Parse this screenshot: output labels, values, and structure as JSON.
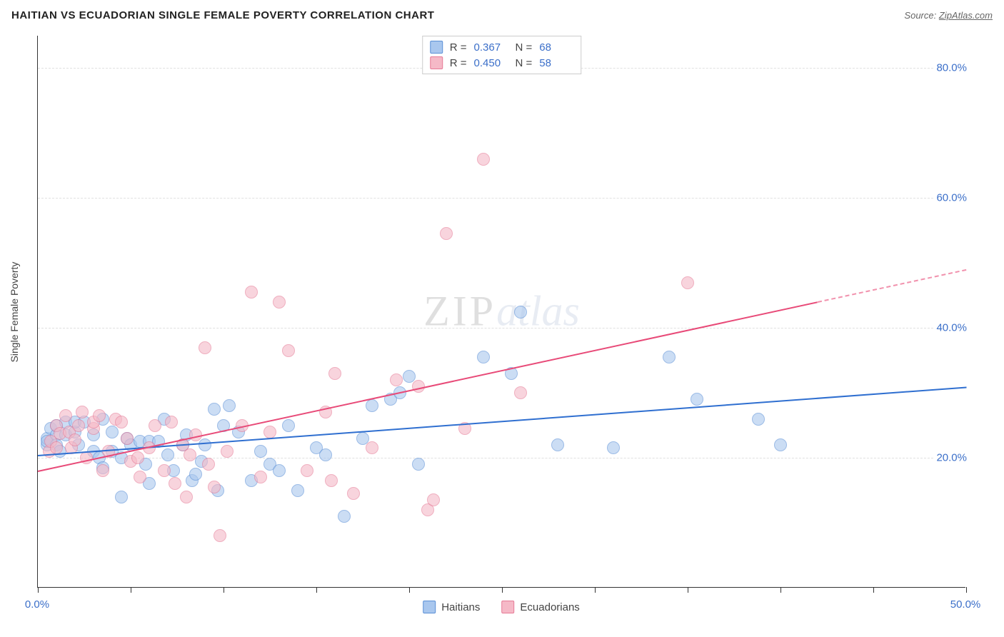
{
  "title": "HAITIAN VS ECUADORIAN SINGLE FEMALE POVERTY CORRELATION CHART",
  "source_label": "Source:",
  "source_name": "ZipAtlas.com",
  "y_axis_label": "Single Female Poverty",
  "watermark_a": "ZIP",
  "watermark_b": "atlas",
  "chart": {
    "type": "scatter",
    "xlim": [
      0,
      50
    ],
    "ylim": [
      0,
      85
    ],
    "x_ticks": [
      0,
      5,
      10,
      15,
      20,
      25,
      30,
      35,
      40,
      45,
      50
    ],
    "x_tick_labels": {
      "0": "0.0%",
      "50": "50.0%"
    },
    "y_ticks": [
      20,
      40,
      60,
      80
    ],
    "y_tick_labels": {
      "20": "20.0%",
      "40": "40.0%",
      "60": "60.0%",
      "80": "80.0%"
    },
    "background_color": "#ffffff",
    "grid_color": "#e0e0e0",
    "axis_color": "#333333",
    "tick_label_color": "#3b6fc9",
    "marker_radius": 9,
    "marker_opacity": 0.6,
    "trend_width": 2.5
  },
  "series": [
    {
      "key": "haitians",
      "label": "Haitians",
      "fill": "#a9c7ee",
      "stroke": "#5a8fd6",
      "line_color": "#2f6fd0",
      "stats": {
        "R_label": "R =",
        "R": "0.367",
        "N_label": "N =",
        "N": "68"
      },
      "trend": {
        "x1": 0,
        "y1": 20.5,
        "x2": 50,
        "y2": 31.0,
        "dash_from_x": null
      },
      "points": [
        [
          0.5,
          22
        ],
        [
          0.5,
          23
        ],
        [
          0.5,
          22.5
        ],
        [
          0.7,
          24.5
        ],
        [
          1,
          23.5
        ],
        [
          1,
          22
        ],
        [
          1,
          25
        ],
        [
          1.2,
          21
        ],
        [
          1.5,
          25.5
        ],
        [
          1.5,
          23.5
        ],
        [
          2,
          24
        ],
        [
          2,
          25.5
        ],
        [
          2.2,
          22
        ],
        [
          2.5,
          25.5
        ],
        [
          3,
          23.5
        ],
        [
          3,
          21
        ],
        [
          3.3,
          20
        ],
        [
          3.5,
          26
        ],
        [
          3.5,
          18.5
        ],
        [
          4,
          24
        ],
        [
          4,
          21
        ],
        [
          4.5,
          20
        ],
        [
          4.5,
          14
        ],
        [
          4.8,
          23
        ],
        [
          5,
          22
        ],
        [
          5.5,
          22.5
        ],
        [
          5.8,
          19
        ],
        [
          6,
          22.5
        ],
        [
          6,
          16
        ],
        [
          6.5,
          22.5
        ],
        [
          6.8,
          26
        ],
        [
          7,
          20.5
        ],
        [
          7.3,
          18
        ],
        [
          7.8,
          22
        ],
        [
          8,
          23.5
        ],
        [
          8.3,
          16.5
        ],
        [
          8.5,
          17.5
        ],
        [
          8.8,
          19.5
        ],
        [
          9,
          22
        ],
        [
          9.5,
          27.5
        ],
        [
          9.7,
          15
        ],
        [
          10,
          25
        ],
        [
          10.3,
          28
        ],
        [
          10.8,
          24
        ],
        [
          11.5,
          16.5
        ],
        [
          12,
          21
        ],
        [
          12.5,
          19
        ],
        [
          13,
          18
        ],
        [
          13.5,
          25
        ],
        [
          14,
          15
        ],
        [
          15,
          21.5
        ],
        [
          15.5,
          20.5
        ],
        [
          16.5,
          11
        ],
        [
          17.5,
          23
        ],
        [
          18,
          28
        ],
        [
          19,
          29
        ],
        [
          19.5,
          30
        ],
        [
          20,
          32.5
        ],
        [
          20.5,
          19
        ],
        [
          24,
          35.5
        ],
        [
          25.5,
          33
        ],
        [
          26,
          42.5
        ],
        [
          28,
          22
        ],
        [
          31,
          21.5
        ],
        [
          34,
          35.5
        ],
        [
          35.5,
          29
        ],
        [
          38.8,
          26
        ],
        [
          40,
          22
        ]
      ]
    },
    {
      "key": "ecuadorians",
      "label": "Ecuadorians",
      "fill": "#f5b9c7",
      "stroke": "#e67a96",
      "line_color": "#e84a78",
      "stats": {
        "R_label": "R =",
        "R": "0.450",
        "N_label": "N =",
        "N": "58"
      },
      "trend": {
        "x1": 0,
        "y1": 18.0,
        "x2": 50,
        "y2": 49.0,
        "dash_from_x": 42
      },
      "points": [
        [
          0.6,
          21
        ],
        [
          0.7,
          22.5
        ],
        [
          1,
          25
        ],
        [
          1,
          21.5
        ],
        [
          1.2,
          23.8
        ],
        [
          1.5,
          26.5
        ],
        [
          1.7,
          24
        ],
        [
          1.8,
          21.5
        ],
        [
          2,
          22.8
        ],
        [
          2.2,
          25
        ],
        [
          2.4,
          27
        ],
        [
          2.6,
          20
        ],
        [
          3,
          24.5
        ],
        [
          3,
          25.5
        ],
        [
          3.3,
          26.5
        ],
        [
          3.5,
          18
        ],
        [
          3.8,
          21
        ],
        [
          4.2,
          26
        ],
        [
          4.5,
          25.5
        ],
        [
          4.8,
          23
        ],
        [
          5,
          19.5
        ],
        [
          5.4,
          20
        ],
        [
          5.5,
          17
        ],
        [
          6,
          21.5
        ],
        [
          6.3,
          25
        ],
        [
          6.8,
          18
        ],
        [
          7.2,
          25.5
        ],
        [
          7.4,
          16
        ],
        [
          7.8,
          22
        ],
        [
          8,
          14
        ],
        [
          8.2,
          20.5
        ],
        [
          8.5,
          23.5
        ],
        [
          9,
          37
        ],
        [
          9.2,
          19
        ],
        [
          9.5,
          15.5
        ],
        [
          9.8,
          8
        ],
        [
          10.2,
          21
        ],
        [
          11,
          25
        ],
        [
          11.5,
          45.5
        ],
        [
          12,
          17
        ],
        [
          12.5,
          24
        ],
        [
          13,
          44
        ],
        [
          13.5,
          36.5
        ],
        [
          14.5,
          18
        ],
        [
          15.5,
          27
        ],
        [
          15.8,
          16.5
        ],
        [
          16,
          33
        ],
        [
          17,
          14.5
        ],
        [
          18,
          21.5
        ],
        [
          19.3,
          32
        ],
        [
          20.5,
          31
        ],
        [
          21,
          12
        ],
        [
          21.3,
          13.5
        ],
        [
          22,
          54.5
        ],
        [
          23,
          24.5
        ],
        [
          24,
          66
        ],
        [
          26,
          30
        ],
        [
          35,
          47
        ]
      ]
    }
  ]
}
